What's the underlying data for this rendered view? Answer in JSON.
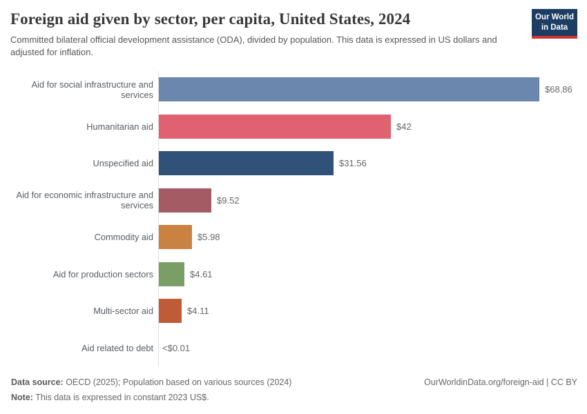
{
  "header": {
    "title": "Foreign aid given by sector, per capita, United States, 2024",
    "subtitle": "Committed bilateral official development assistance (ODA), divided by population. This data is expressed in US dollars and adjusted for inflation."
  },
  "logo": {
    "line1": "Our World",
    "line2": "in Data",
    "bg_color": "#1d3d63",
    "accent_color": "#d1342c"
  },
  "chart_data": {
    "type": "bar",
    "orientation": "horizontal",
    "title": "Foreign aid given by sector, per capita, United States, 2024",
    "categories": [
      "Aid for social infrastructure and services",
      "Humanitarian aid",
      "Unspecified aid",
      "Aid for economic infrastructure and services",
      "Commodity aid",
      "Aid for production sectors",
      "Multi-sector aid",
      "Aid related to debt"
    ],
    "values": [
      68.86,
      42,
      31.56,
      9.52,
      5.98,
      4.61,
      4.11,
      0.005
    ],
    "value_labels": [
      "$68.86",
      "$42",
      "$31.56",
      "$9.52",
      "$5.98",
      "$4.61",
      "$4.11",
      "<$0.01"
    ],
    "bar_colors": [
      "#6c87ad",
      "#e0616f",
      "#305278",
      "#a55b64",
      "#c88242",
      "#799f64",
      "#bf5b37",
      "#999999"
    ],
    "xlim": [
      0,
      68.86
    ],
    "xlabel": "",
    "ylabel": "",
    "grid": false,
    "legend": false,
    "axis_color": "#dddddd"
  },
  "footer": {
    "source_label": "Data source:",
    "source_text": " OECD (2025); Population based on various sources (2024)",
    "note_label": "Note:",
    "note_text": " This data is expressed in constant 2023 US$.",
    "link": "OurWorldinData.org/foreign-aid | CC BY"
  }
}
